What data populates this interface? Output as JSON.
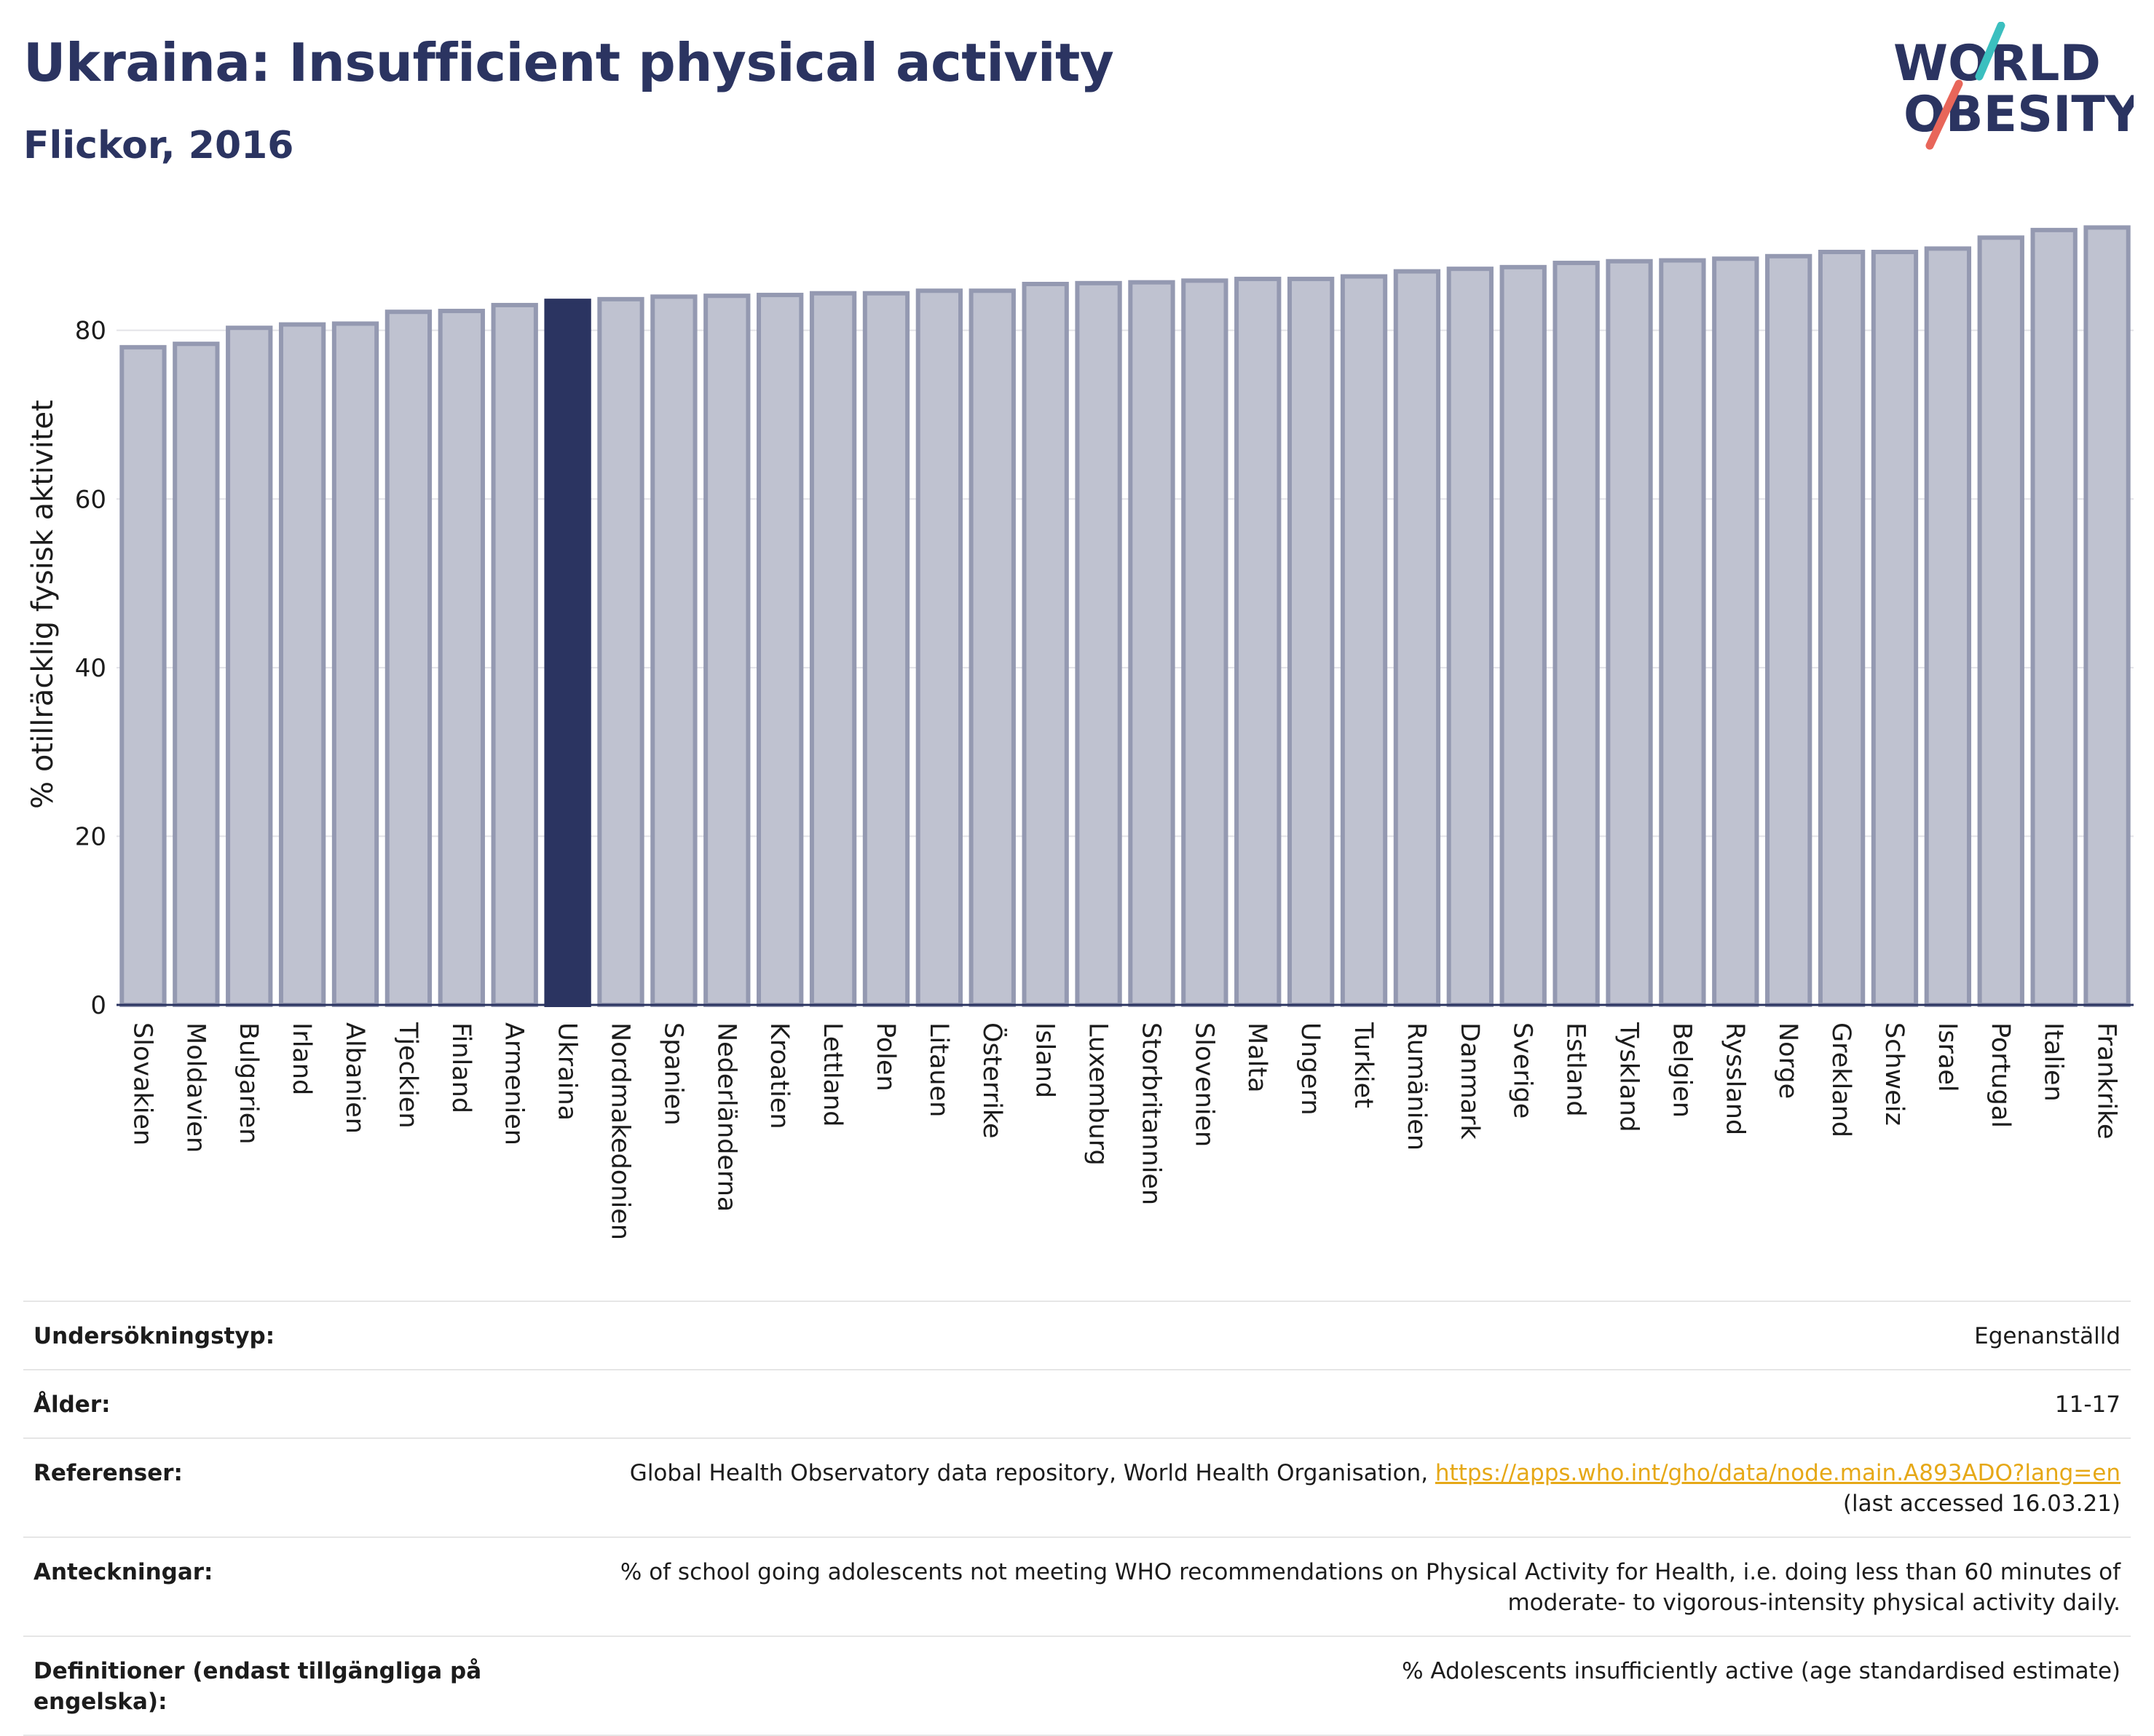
{
  "header": {
    "title": "Ukraina: Insufficient physical activity",
    "subtitle": "Flickor, 2016"
  },
  "logo": {
    "line1": "WORLD",
    "line2": "OBESITY",
    "accent_teal": "#3bbfbf",
    "accent_red": "#e8665a",
    "text_color": "#2b3461"
  },
  "chart_data": {
    "type": "bar",
    "ylabel": "% otillräcklig fysisk aktivitet",
    "ylim": [
      0,
      95
    ],
    "yticks": [
      0,
      20,
      40,
      60,
      80
    ],
    "grid": true,
    "highlight": "Ukraina",
    "colors": {
      "bar": "#bfc2d0",
      "bar_edge": "#9499b1",
      "highlight": "#2b3461"
    },
    "categories": [
      "Slovakien",
      "Moldavien",
      "Bulgarien",
      "Irland",
      "Albanien",
      "Tjeckien",
      "Finland",
      "Armenien",
      "Ukraina",
      "Nordmakedonien",
      "Spanien",
      "Nederländerna",
      "Kroatien",
      "Lettland",
      "Polen",
      "Litauen",
      "Österrike",
      "Island",
      "Luxemburg",
      "Storbritannien",
      "Slovenien",
      "Malta",
      "Ungern",
      "Turkiet",
      "Rumänien",
      "Danmark",
      "Sverige",
      "Estland",
      "Tyskland",
      "Belgien",
      "Ryssland",
      "Norge",
      "Grekland",
      "Schweiz",
      "Israel",
      "Portugal",
      "Italien",
      "Frankrike"
    ],
    "values": [
      78.0,
      78.4,
      80.3,
      80.7,
      80.8,
      82.2,
      82.3,
      83.0,
      83.5,
      83.7,
      84.0,
      84.1,
      84.2,
      84.4,
      84.4,
      84.7,
      84.7,
      85.5,
      85.6,
      85.7,
      85.9,
      86.1,
      86.1,
      86.4,
      87.0,
      87.3,
      87.5,
      88.0,
      88.2,
      88.3,
      88.5,
      88.8,
      89.3,
      89.3,
      89.7,
      91.0,
      91.9,
      92.2
    ]
  },
  "meta": {
    "rows": [
      {
        "key": "Undersökningstyp:",
        "value": "Egenanställd"
      },
      {
        "key": "Ålder:",
        "value": "11-17"
      },
      {
        "key": "Referenser:",
        "value": "Global Health Observatory data repository, World Health Organisation, ",
        "link": "https://apps.who.int/gho/data/node.main.A893ADO?lang=en",
        "value2": "(last accessed 16.03.21)"
      },
      {
        "key": "Anteckningar:",
        "value": "% of school going adolescents not meeting WHO recommendations on Physical Activity for Health, i.e. doing less than 60 minutes of",
        "value2": "moderate- to vigorous-intensity physical activity daily."
      },
      {
        "key": "Definitioner (endast tillgängliga på engelska):",
        "value": "% Adolescents insufficiently active (age standardised estimate)"
      }
    ]
  }
}
